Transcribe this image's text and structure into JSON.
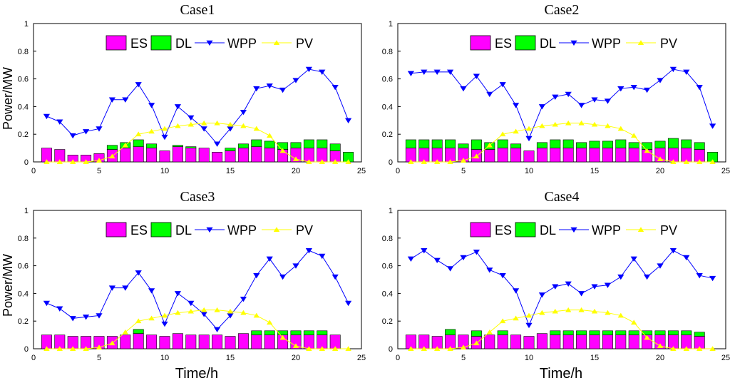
{
  "figure": {
    "ylabel": "Power/MW",
    "xlabel": "Time/h"
  },
  "colors": {
    "ES": "#ff00ff",
    "DL": "#00ff00",
    "WPP": "#0000ff",
    "PV": "#ffff00"
  },
  "chart_data": [
    {
      "type": "bar",
      "title": "Case1",
      "xlim": [
        0,
        25
      ],
      "ylim": [
        0,
        1
      ],
      "xticks": [
        "0",
        "5",
        "10",
        "15",
        "20",
        "25"
      ],
      "yticks": [
        "0",
        "0.2",
        "0.4",
        "0.6",
        "0.8",
        "1"
      ],
      "legend": [
        "ES",
        "DL",
        "WPP",
        "PV"
      ],
      "x": [
        1,
        2,
        3,
        4,
        5,
        6,
        7,
        8,
        9,
        10,
        11,
        12,
        13,
        14,
        15,
        16,
        17,
        18,
        19,
        20,
        21,
        22,
        23,
        24
      ],
      "series": [
        {
          "name": "ES",
          "kind": "bar-stack",
          "values": [
            0.1,
            0.09,
            0.05,
            0.05,
            0.06,
            0.09,
            0.1,
            0.11,
            0.1,
            0.08,
            0.11,
            0.1,
            0.1,
            0.07,
            0.08,
            0.1,
            0.11,
            0.1,
            0.09,
            0.1,
            0.1,
            0.1,
            0.08,
            0.0
          ]
        },
        {
          "name": "DL",
          "kind": "bar-stack",
          "values": [
            0.0,
            0.0,
            0.0,
            0.0,
            0.0,
            0.03,
            0.04,
            0.05,
            0.03,
            0.0,
            0.01,
            0.01,
            0.0,
            0.0,
            0.02,
            0.03,
            0.05,
            0.05,
            0.05,
            0.04,
            0.06,
            0.06,
            0.05,
            0.07
          ]
        },
        {
          "name": "WPP",
          "kind": "line",
          "values": [
            0.33,
            0.29,
            0.19,
            0.22,
            0.24,
            0.45,
            0.45,
            0.56,
            0.41,
            0.18,
            0.4,
            0.32,
            0.24,
            0.13,
            0.24,
            0.36,
            0.53,
            0.55,
            0.52,
            0.59,
            0.67,
            0.65,
            0.54,
            0.3
          ]
        },
        {
          "name": "PV",
          "kind": "line",
          "values": [
            0.0,
            0.0,
            0.0,
            0.0,
            0.01,
            0.04,
            0.12,
            0.2,
            0.22,
            0.24,
            0.26,
            0.27,
            0.28,
            0.28,
            0.27,
            0.26,
            0.24,
            0.19,
            0.08,
            0.02,
            0.0,
            0.0,
            0.0,
            0.0
          ]
        }
      ]
    },
    {
      "type": "bar",
      "title": "Case2",
      "xlim": [
        0,
        25
      ],
      "ylim": [
        0,
        1
      ],
      "xticks": [
        "0",
        "5",
        "10",
        "15",
        "20",
        "25"
      ],
      "yticks": [
        "0",
        "0.2",
        "0.4",
        "0.6",
        "0.8",
        "1"
      ],
      "legend": [
        "ES",
        "DL",
        "WPP",
        "PV"
      ],
      "x": [
        1,
        2,
        3,
        4,
        5,
        6,
        7,
        8,
        9,
        10,
        11,
        12,
        13,
        14,
        15,
        16,
        17,
        18,
        19,
        20,
        21,
        22,
        23,
        24
      ],
      "series": [
        {
          "name": "ES",
          "kind": "bar-stack",
          "values": [
            0.1,
            0.1,
            0.1,
            0.1,
            0.1,
            0.09,
            0.09,
            0.1,
            0.1,
            0.08,
            0.1,
            0.1,
            0.1,
            0.1,
            0.1,
            0.1,
            0.1,
            0.1,
            0.09,
            0.1,
            0.1,
            0.1,
            0.09,
            0.0
          ]
        },
        {
          "name": "DL",
          "kind": "bar-stack",
          "values": [
            0.06,
            0.06,
            0.06,
            0.06,
            0.03,
            0.07,
            0.05,
            0.06,
            0.03,
            0.0,
            0.04,
            0.06,
            0.06,
            0.04,
            0.05,
            0.05,
            0.06,
            0.04,
            0.05,
            0.05,
            0.07,
            0.06,
            0.05,
            0.07
          ]
        },
        {
          "name": "WPP",
          "kind": "line",
          "values": [
            0.64,
            0.65,
            0.65,
            0.65,
            0.53,
            0.62,
            0.49,
            0.56,
            0.41,
            0.17,
            0.4,
            0.47,
            0.49,
            0.41,
            0.45,
            0.44,
            0.53,
            0.54,
            0.52,
            0.59,
            0.67,
            0.65,
            0.54,
            0.26
          ]
        },
        {
          "name": "PV",
          "kind": "line",
          "values": [
            0.0,
            0.0,
            0.0,
            0.0,
            0.01,
            0.04,
            0.12,
            0.2,
            0.22,
            0.24,
            0.26,
            0.27,
            0.28,
            0.28,
            0.27,
            0.26,
            0.24,
            0.19,
            0.08,
            0.02,
            0.0,
            0.0,
            0.0,
            0.0
          ]
        }
      ]
    },
    {
      "type": "bar",
      "title": "Case3",
      "xlim": [
        0,
        25
      ],
      "ylim": [
        0,
        1
      ],
      "xticks": [
        "0",
        "5",
        "10",
        "15",
        "20",
        "25"
      ],
      "yticks": [
        "0",
        "0.2",
        "0.4",
        "0.6",
        "0.8",
        "1"
      ],
      "legend": [
        "ES",
        "DL",
        "WPP",
        "PV"
      ],
      "x": [
        1,
        2,
        3,
        4,
        5,
        6,
        7,
        8,
        9,
        10,
        11,
        12,
        13,
        14,
        15,
        16,
        17,
        18,
        19,
        20,
        21,
        22,
        23,
        24
      ],
      "series": [
        {
          "name": "ES",
          "kind": "bar-stack",
          "values": [
            0.1,
            0.1,
            0.09,
            0.09,
            0.09,
            0.09,
            0.1,
            0.11,
            0.1,
            0.09,
            0.11,
            0.1,
            0.1,
            0.1,
            0.09,
            0.11,
            0.1,
            0.1,
            0.1,
            0.1,
            0.1,
            0.1,
            0.1,
            0.0
          ]
        },
        {
          "name": "DL",
          "kind": "bar-stack",
          "values": [
            0.0,
            0.0,
            0.0,
            0.0,
            0.0,
            0.0,
            0.0,
            0.03,
            0.0,
            0.0,
            0.0,
            0.0,
            0.0,
            0.0,
            0.0,
            0.0,
            0.03,
            0.03,
            0.03,
            0.03,
            0.03,
            0.03,
            0.0,
            0.0
          ]
        },
        {
          "name": "WPP",
          "kind": "line",
          "values": [
            0.33,
            0.29,
            0.22,
            0.23,
            0.24,
            0.44,
            0.44,
            0.55,
            0.42,
            0.18,
            0.4,
            0.33,
            0.25,
            0.14,
            0.24,
            0.36,
            0.53,
            0.65,
            0.52,
            0.6,
            0.71,
            0.67,
            0.52,
            0.33
          ]
        },
        {
          "name": "PV",
          "kind": "line",
          "values": [
            0.0,
            0.0,
            0.0,
            0.0,
            0.01,
            0.04,
            0.12,
            0.2,
            0.22,
            0.24,
            0.26,
            0.27,
            0.28,
            0.28,
            0.27,
            0.26,
            0.24,
            0.19,
            0.08,
            0.02,
            0.0,
            0.0,
            0.0,
            0.0
          ]
        }
      ]
    },
    {
      "type": "bar",
      "title": "Case4",
      "xlim": [
        0,
        25
      ],
      "ylim": [
        0,
        1
      ],
      "xticks": [
        "0",
        "5",
        "10",
        "15",
        "20",
        "25"
      ],
      "yticks": [
        "0",
        "0.2",
        "0.4",
        "0.6",
        "0.8",
        "1"
      ],
      "legend": [
        "ES",
        "DL",
        "WPP",
        "PV"
      ],
      "x": [
        1,
        2,
        3,
        4,
        5,
        6,
        7,
        8,
        9,
        10,
        11,
        12,
        13,
        14,
        15,
        16,
        17,
        18,
        19,
        20,
        21,
        22,
        23,
        24
      ],
      "series": [
        {
          "name": "ES",
          "kind": "bar-stack",
          "values": [
            0.1,
            0.1,
            0.09,
            0.1,
            0.1,
            0.09,
            0.1,
            0.1,
            0.1,
            0.09,
            0.11,
            0.1,
            0.1,
            0.1,
            0.1,
            0.1,
            0.1,
            0.1,
            0.1,
            0.1,
            0.1,
            0.1,
            0.09,
            0.0
          ]
        },
        {
          "name": "DL",
          "kind": "bar-stack",
          "values": [
            0.0,
            0.0,
            0.0,
            0.04,
            0.0,
            0.04,
            0.0,
            0.03,
            0.0,
            0.0,
            0.0,
            0.03,
            0.03,
            0.03,
            0.03,
            0.03,
            0.03,
            0.03,
            0.03,
            0.03,
            0.03,
            0.03,
            0.03,
            0.0
          ]
        },
        {
          "name": "WPP",
          "kind": "line",
          "values": [
            0.65,
            0.71,
            0.64,
            0.58,
            0.66,
            0.7,
            0.57,
            0.53,
            0.42,
            0.17,
            0.39,
            0.45,
            0.47,
            0.4,
            0.45,
            0.46,
            0.52,
            0.65,
            0.52,
            0.6,
            0.71,
            0.66,
            0.53,
            0.51
          ]
        },
        {
          "name": "PV",
          "kind": "line",
          "values": [
            0.0,
            0.0,
            0.0,
            0.0,
            0.01,
            0.04,
            0.12,
            0.2,
            0.22,
            0.24,
            0.26,
            0.27,
            0.28,
            0.28,
            0.27,
            0.26,
            0.24,
            0.19,
            0.08,
            0.02,
            0.0,
            0.0,
            0.0,
            0.0
          ]
        }
      ]
    }
  ]
}
